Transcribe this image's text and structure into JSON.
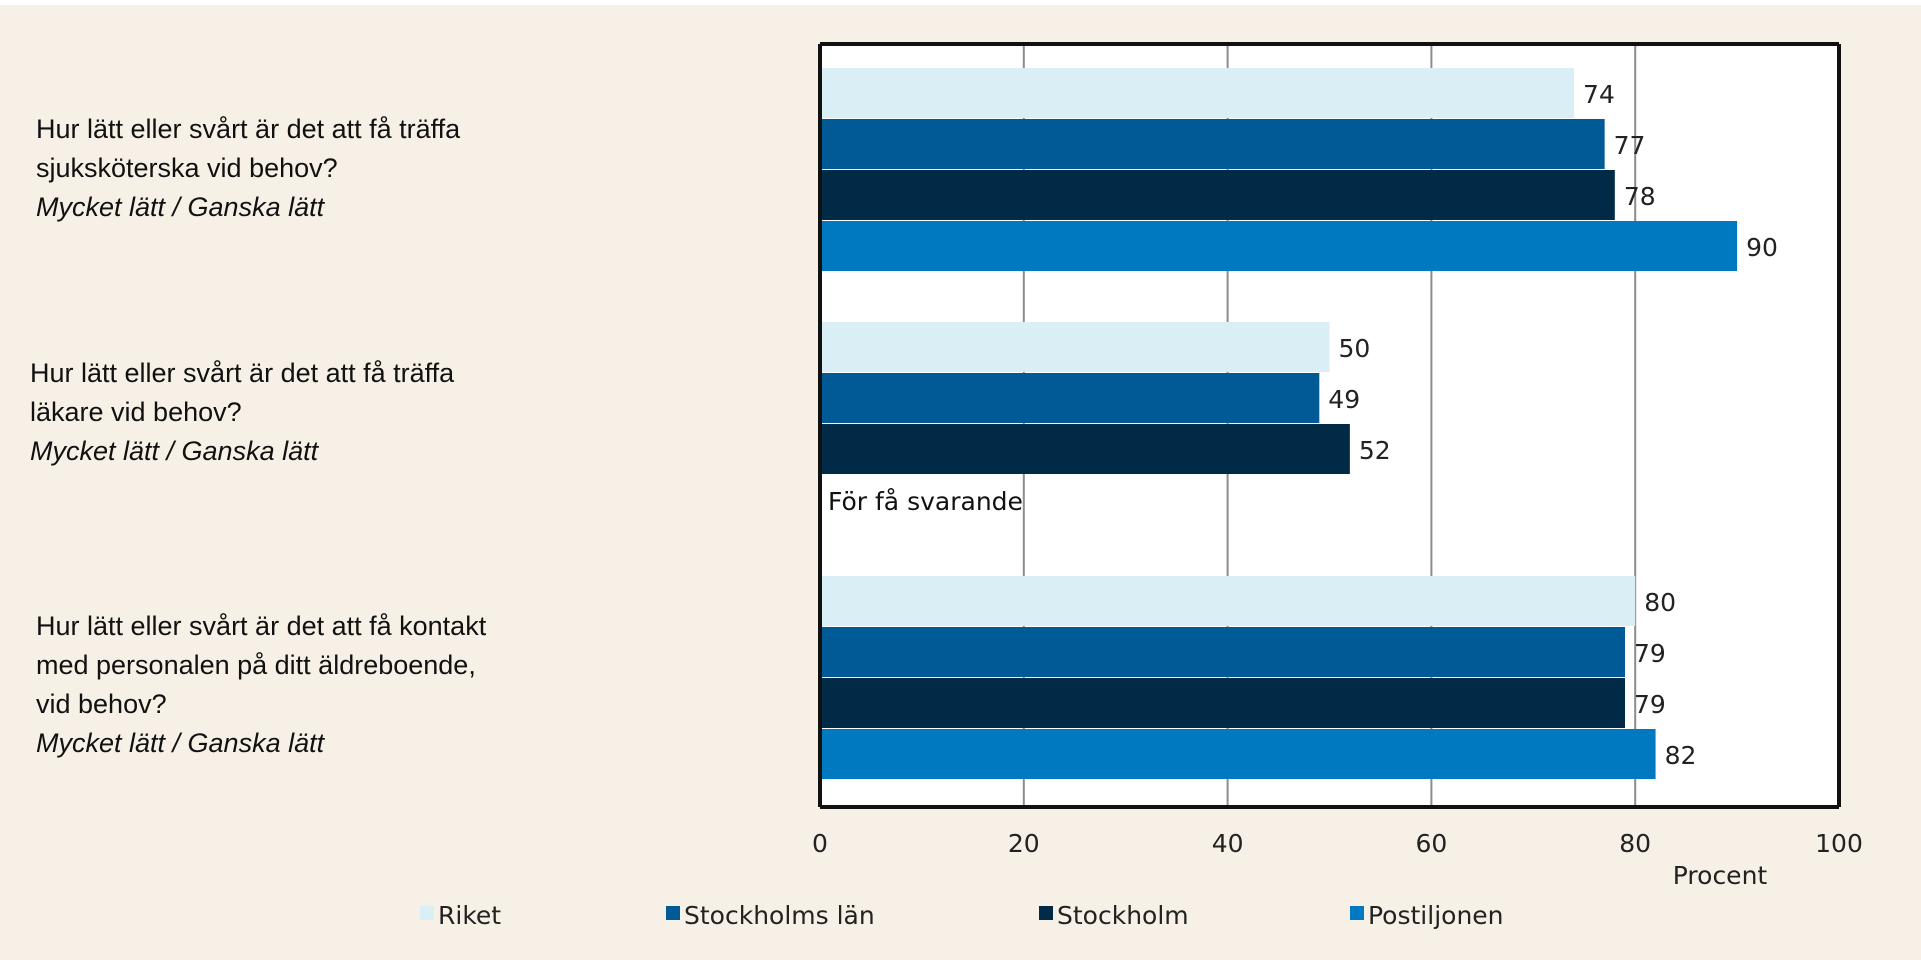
{
  "chart_data": {
    "type": "bar",
    "orientation": "horizontal",
    "categories": [
      {
        "text": "Hur lätt eller svårt är det att få träffa\nsjuksköterska vid behov?",
        "subtext": "Mycket lätt / Ganska lätt"
      },
      {
        "text": "Hur lätt eller svårt är det att få träffa\nläkare vid behov?",
        "subtext": "Mycket lätt / Ganska lätt"
      },
      {
        "text": "Hur lätt eller svårt är det att få kontakt\nmed personalen på ditt äldreboende,\nvid behov?",
        "subtext": "Mycket lätt / Ganska lätt"
      }
    ],
    "series": [
      {
        "name": "Riket",
        "color": "#daeef6",
        "values": [
          74,
          50,
          80
        ]
      },
      {
        "name": "Stockholms län",
        "color": "#005a96",
        "values": [
          77,
          49,
          79
        ]
      },
      {
        "name": "Stockholm",
        "color": "#002a45",
        "values": [
          78,
          52,
          79
        ]
      },
      {
        "name": "Postiljonen",
        "color": "#0079c1",
        "values": [
          90,
          null,
          82
        ]
      }
    ],
    "missing_note": "För få svarande",
    "xlim": [
      0,
      100
    ],
    "xticks": [
      0,
      20,
      40,
      60,
      80,
      100
    ],
    "xlabel": "Procent",
    "grid": true,
    "legend_position": "bottom"
  }
}
